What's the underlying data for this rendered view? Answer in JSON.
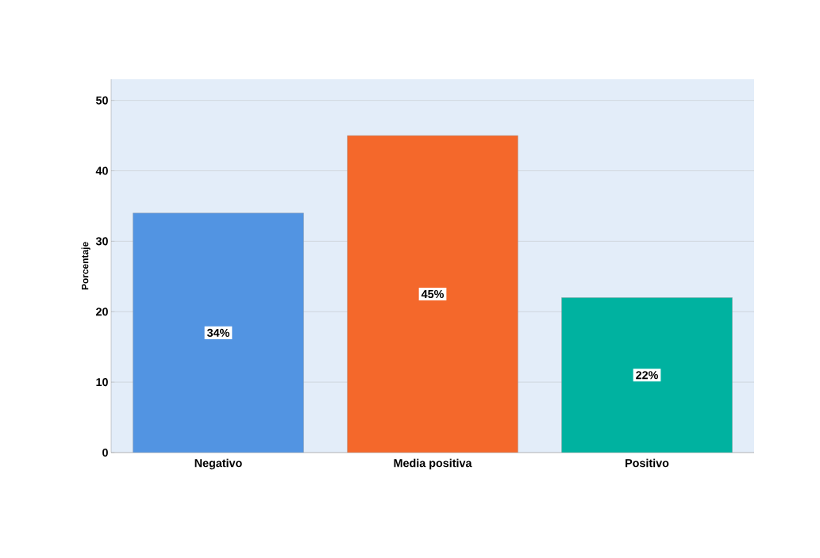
{
  "chart_data": {
    "type": "bar",
    "ylabel": "Porcentaje",
    "categories": [
      "Negativo",
      "Media positiva",
      "Positivo"
    ],
    "values": [
      34,
      45,
      22
    ],
    "colors": [
      "#5294e2",
      "#f4682b",
      "#00b2a0"
    ],
    "value_labels": [
      "34%",
      "45%",
      "22%"
    ],
    "ylim": [
      0,
      53
    ],
    "yticks": [
      0,
      10,
      20,
      30,
      40,
      50
    ],
    "grid": "y"
  }
}
